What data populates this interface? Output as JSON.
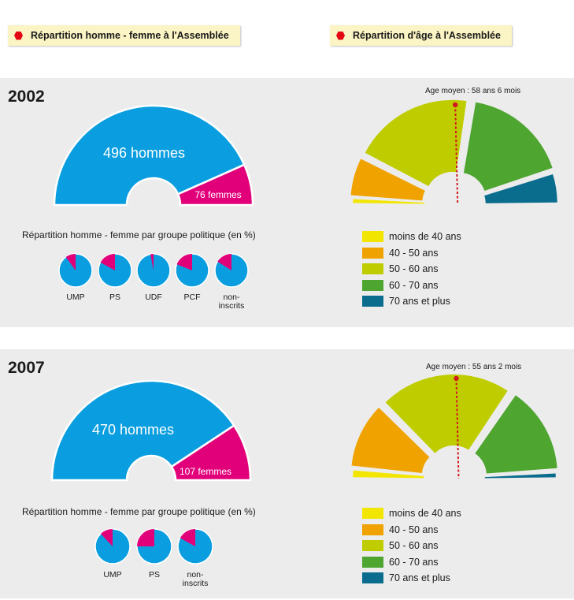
{
  "header": {
    "gender_title": "Répartition homme - femme à l'Assemblée",
    "age_title": "Répartition d'âge à l'Assemblée"
  },
  "colors": {
    "men": "#0a9ee0",
    "women": "#e2007a",
    "age": [
      "#f2e600",
      "#f0a300",
      "#bfcd00",
      "#4ea52f",
      "#0b6d8e"
    ],
    "mean_line": "#d0191f"
  },
  "panels": [
    {
      "year": "2002",
      "gender": {
        "men_label": "496 hommes",
        "women_label": "76 femmes",
        "men": 496,
        "women": 76
      },
      "groups_title": "Répartition homme - femme par groupe politique (en %)",
      "groups": [
        {
          "name": "UMP",
          "women_pct": 10
        },
        {
          "name": "PS",
          "women_pct": 17
        },
        {
          "name": "UDF",
          "women_pct": 3
        },
        {
          "name": "PCF",
          "women_pct": 19
        },
        {
          "name": "non-inscrits",
          "women_pct": 16
        }
      ],
      "age_mean_label": "Age moyen : 58 ans 6 mois",
      "age_legend": [
        "moins de 40 ans",
        "40 - 50 ans",
        "50 - 60 ans",
        "60 - 70 ans",
        "70 ans et plus"
      ]
    },
    {
      "year": "2007",
      "gender": {
        "men_label": "470 hommes",
        "women_label": "107 femmes",
        "men": 470,
        "women": 107
      },
      "groups_title": "Répartition homme - femme par groupe politique (en %)",
      "groups": [
        {
          "name": "UMP",
          "women_pct": 12
        },
        {
          "name": "PS",
          "women_pct": 25
        },
        {
          "name": "non-inscrits",
          "women_pct": 17
        }
      ],
      "age_mean_label": "Age moyen : 55 ans 2 mois",
      "age_legend": [
        "moins de 40 ans",
        "40 - 50 ans",
        "50 - 60 ans",
        "60 - 70 ans",
        "70 ans et plus"
      ]
    }
  ],
  "chart_data": [
    {
      "type": "pie",
      "title": "Répartition homme - femme à l'Assemblée",
      "series_label": "2002",
      "categories": [
        "hommes",
        "femmes"
      ],
      "values": [
        496,
        76
      ]
    },
    {
      "type": "pie",
      "title": "Répartition d'âge à l'Assemblée",
      "series_label": "2002",
      "categories": [
        "moins de 40 ans",
        "40 - 50 ans",
        "50 - 60 ans",
        "60 - 70 ans",
        "70 ans et plus"
      ],
      "values_pct": [
        2,
        13,
        40,
        35,
        10
      ],
      "annotation": "Age moyen : 58 ans 6 mois"
    },
    {
      "type": "pie",
      "title": "Répartition homme - femme par groupe politique (en %)",
      "series_label": "2002",
      "categories": [
        "UMP",
        "PS",
        "UDF",
        "PCF",
        "non-inscrits"
      ],
      "women_pct": [
        10,
        17,
        3,
        19,
        16
      ]
    },
    {
      "type": "pie",
      "title": "Répartition homme - femme à l'Assemblée",
      "series_label": "2007",
      "categories": [
        "hommes",
        "femmes"
      ],
      "values": [
        470,
        107
      ]
    },
    {
      "type": "pie",
      "title": "Répartition d'âge à l'Assemblée",
      "series_label": "2007",
      "categories": [
        "moins de 40 ans",
        "40 - 50 ans",
        "50 - 60 ans",
        "60 - 70 ans",
        "70 ans et plus"
      ],
      "values_pct": [
        3,
        22,
        44,
        29,
        2
      ],
      "annotation": "Age moyen : 55 ans 2 mois"
    },
    {
      "type": "pie",
      "title": "Répartition homme - femme par groupe politique (en %)",
      "series_label": "2007",
      "categories": [
        "UMP",
        "PS",
        "non-inscrits"
      ],
      "women_pct": [
        12,
        25,
        17
      ]
    }
  ]
}
